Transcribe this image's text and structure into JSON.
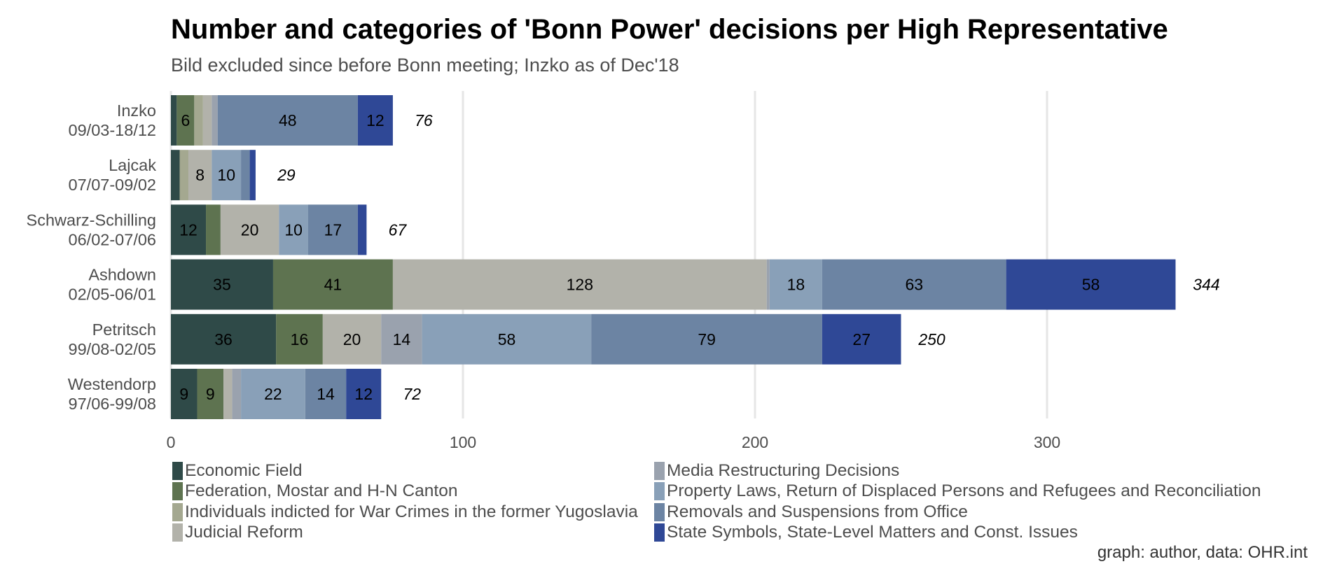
{
  "title": "Number and categories of 'Bonn Power' decisions per High Representative",
  "subtitle": "Bild excluded since before Bonn meeting; Inzko as of Dec'18",
  "caption": "graph: author, data: OHR.int",
  "chart_data": {
    "type": "bar",
    "orientation": "horizontal",
    "stacked": true,
    "xlim": [
      0,
      350
    ],
    "xticks": [
      0,
      100,
      200,
      300
    ],
    "grid": "vertical major lines",
    "legend_position": "bottom, two columns",
    "categories": [
      {
        "name": "Inzko",
        "period": "09/03-18/12",
        "total": "76"
      },
      {
        "name": "Lajcak",
        "period": "07/07-09/02",
        "total": "29"
      },
      {
        "name": "Schwarz-Schilling",
        "period": "06/02-07/06",
        "total": "67"
      },
      {
        "name": "Ashdown",
        "period": "02/05-06/01",
        "total": "344"
      },
      {
        "name": "Petritsch",
        "period": "99/08-02/05",
        "total": "250"
      },
      {
        "name": "Westendorp",
        "period": "97/06-99/08",
        "total": "72"
      }
    ],
    "series": [
      {
        "name": "Economic Field",
        "color": "#2f4a48",
        "values": [
          2,
          3,
          12,
          35,
          36,
          9
        ]
      },
      {
        "name": "Federation, Mostar and H-N Canton",
        "color": "#5e7350",
        "values": [
          6,
          0,
          5,
          41,
          16,
          9
        ]
      },
      {
        "name": "Individuals indicted for War Crimes in the former Yugoslavia",
        "color": "#a4a890",
        "values": [
          3,
          3,
          0,
          0,
          0,
          0
        ]
      },
      {
        "name": "Judicial Reform",
        "color": "#b2b2aa",
        "values": [
          3,
          8,
          20,
          128,
          20,
          3
        ]
      },
      {
        "name": "Media Restructuring Decisions",
        "color": "#9aa2ae",
        "values": [
          2,
          0,
          0,
          1,
          14,
          3
        ]
      },
      {
        "name": "Property Laws, Return of Displaced Persons and Refugees and Reconciliation",
        "color": "#89a0b8",
        "values": [
          0,
          10,
          10,
          18,
          58,
          22
        ]
      },
      {
        "name": "Removals and Suspensions from Office",
        "color": "#6c84a3",
        "values": [
          48,
          3,
          17,
          63,
          79,
          14
        ]
      },
      {
        "name": "State Symbols, State-Level Matters and Const. Issues",
        "color": "#2f4896",
        "values": [
          12,
          2,
          3,
          58,
          27,
          12
        ]
      }
    ],
    "shown_labels_min": 6
  }
}
